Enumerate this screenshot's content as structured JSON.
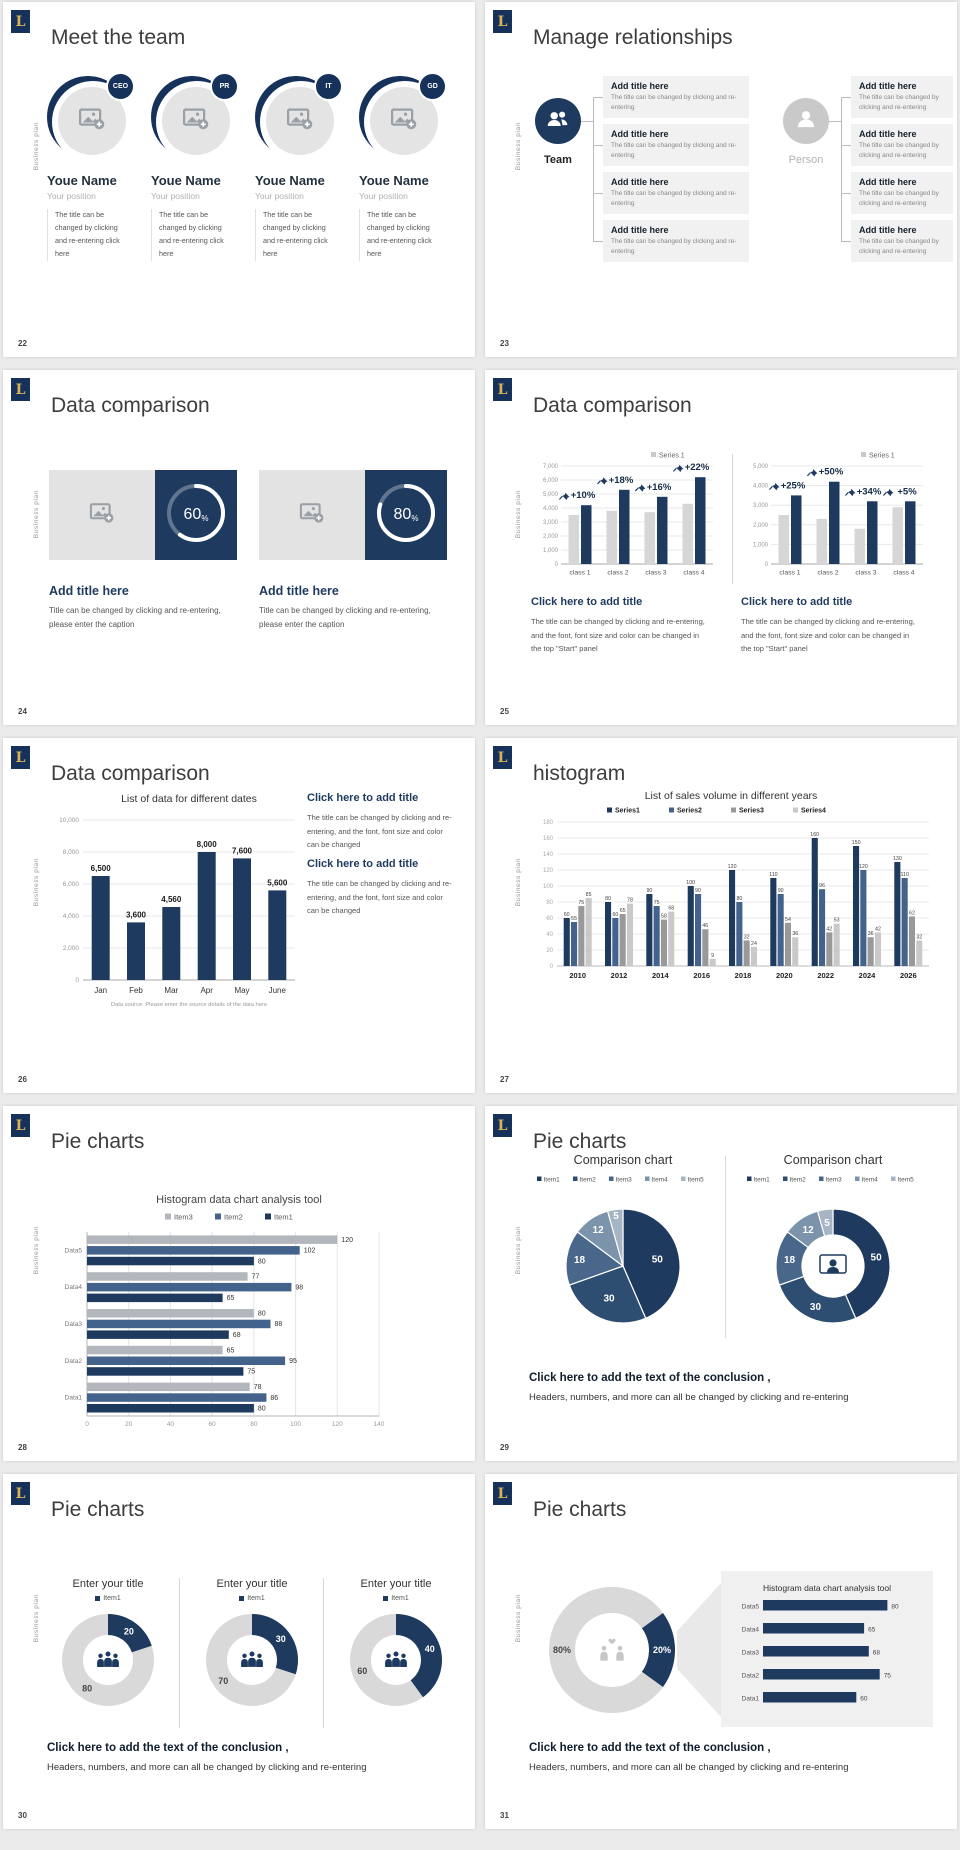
{
  "page": {
    "background": "#ebebeb"
  },
  "common": {
    "logo_letter": "L",
    "side_label": "Business plan"
  },
  "colors": {
    "navy": "#1e3a5f",
    "steel": "#44638c",
    "bar_gray": "#d6d6d6",
    "series_gray": "#999999",
    "series_light": "#c9c9c9",
    "hbar_gray": "#b3b7bd",
    "donut_gray": "#d9d9d9",
    "pie_palette": [
      "#1e3a5f",
      "#2d4d71",
      "#48678a",
      "#7b93ab",
      "#a6b4c3"
    ]
  },
  "conclusion": {
    "title": "Click here to add the text of the conclusion ,",
    "text": "Headers, numbers, and more can all be changed by clicking and re-entering"
  },
  "slides": {
    "meet_team": {
      "title": "Meet the team",
      "page": "22",
      "member_name": "Youe Name",
      "member_position": "Your position",
      "member_desc": "The title can be changed by clicking and re-entering click here",
      "members": [
        {
          "badge": "CEO"
        },
        {
          "badge": "PR"
        },
        {
          "badge": "IT"
        },
        {
          "badge": "GD"
        }
      ]
    },
    "relationships": {
      "title": "Manage relationships",
      "page": "23",
      "team_label": "Team",
      "person_label": "Person",
      "item_title": "Add title here",
      "item_desc": "The title can be changed by clicking and re-entering"
    },
    "data_cmp_a": {
      "title": "Data comparison",
      "page": "24",
      "block_title": "Add title here",
      "block_caption": "Title can be changed by clicking and re-entering, please enter the caption",
      "blocks": [
        {
          "percent": "60"
        },
        {
          "percent": "80"
        }
      ]
    },
    "data_cmp_b": {
      "title": "Data comparison",
      "page": "25",
      "caption_title": "Click here to add title",
      "caption_text": "The title can be changed by clicking and re-entering, and the font, font size and color can be changed in the top \"Start\" panel"
    },
    "data_cmp_c": {
      "title": "Data comparison",
      "page": "26",
      "caption_title": "Click here to add title",
      "caption_text": "The title can be changed by clicking and re-entering, and the font, font size and color can be changed"
    },
    "histogram": {
      "title": "histogram",
      "page": "27"
    },
    "pie_a": {
      "title": "Pie charts",
      "page": "28"
    },
    "pie_b": {
      "title": "Pie charts",
      "page": "29"
    },
    "pie_c": {
      "title": "Pie charts",
      "page": "30",
      "donut_title": "Enter your title",
      "legend": "Item1"
    },
    "pie_d": {
      "title": "Pie charts",
      "page": "31",
      "panel_title": "Histogram data chart analysis tool"
    }
  },
  "chart_data": [
    {
      "id": "cmp_b_left",
      "type": "bar",
      "legend": [
        "Series 1"
      ],
      "categories": [
        "class 1",
        "class 2",
        "class 3",
        "class 4"
      ],
      "series": [
        {
          "name": "base",
          "values": [
            3500,
            3800,
            3700,
            4300
          ]
        },
        {
          "name": "Series 1",
          "values": [
            4200,
            5300,
            4800,
            6200
          ]
        }
      ],
      "group_labels": [
        "+10%",
        "+18%",
        "+16%",
        "+22%"
      ],
      "ylim": [
        0,
        7000
      ],
      "ytick_step": 1000
    },
    {
      "id": "cmp_b_right",
      "type": "bar",
      "legend": [
        "Series 1"
      ],
      "categories": [
        "class 1",
        "class 2",
        "class 3",
        "class 4"
      ],
      "series": [
        {
          "name": "base",
          "values": [
            2500,
            2300,
            1800,
            2900
          ]
        },
        {
          "name": "Series 1",
          "values": [
            3500,
            4200,
            3200,
            3200
          ]
        }
      ],
      "group_labels": [
        "+25%",
        "+50%",
        "+34%",
        "+5%"
      ],
      "ylim": [
        0,
        5000
      ],
      "ytick_step": 1000
    },
    {
      "id": "cmp_c",
      "type": "bar",
      "title": "List of data for different dates",
      "categories": [
        "Jan",
        "Feb",
        "Mar",
        "Apr",
        "May",
        "June"
      ],
      "values": [
        6500,
        3600,
        4560,
        8000,
        7600,
        5600
      ],
      "ylim": [
        0,
        10000
      ],
      "ytick_step": 2000,
      "footnote": "Data source: Please enter the source details of the data here"
    },
    {
      "id": "histogram",
      "type": "bar",
      "title": "List of sales volume in different years",
      "categories": [
        "2010",
        "2012",
        "2014",
        "2016",
        "2018",
        "2020",
        "2022",
        "2024",
        "2026"
      ],
      "series": [
        {
          "name": "Series1",
          "values": [
            60,
            80,
            90,
            100,
            120,
            110,
            160,
            150,
            130
          ]
        },
        {
          "name": "Series2",
          "values": [
            55,
            60,
            75,
            90,
            80,
            90,
            96,
            120,
            110
          ]
        },
        {
          "name": "Series3",
          "values": [
            75,
            65,
            58,
            46,
            32,
            54,
            42,
            36,
            62
          ]
        },
        {
          "name": "Series4",
          "values": [
            85,
            78,
            68,
            9,
            24,
            36,
            53,
            42,
            32
          ]
        }
      ],
      "ylim": [
        0,
        180
      ],
      "ytick_step": 20
    },
    {
      "id": "pie_a_bars",
      "type": "bar",
      "orientation": "horizontal",
      "title": "Histogram data chart analysis tool",
      "categories": [
        "Data1",
        "Data2",
        "Data3",
        "Data4",
        "Data5"
      ],
      "series": [
        {
          "name": "Item1",
          "values": [
            80,
            75,
            68,
            65,
            80
          ]
        },
        {
          "name": "Item2",
          "values": [
            86,
            95,
            88,
            98,
            102
          ]
        },
        {
          "name": "Item3",
          "values": [
            78,
            65,
            80,
            77,
            120
          ]
        }
      ],
      "xlim": [
        0,
        140
      ],
      "xtick_step": 20
    },
    {
      "id": "pie_b_pie",
      "type": "pie",
      "title": "Comparison chart",
      "labels": [
        "Item1",
        "Item2",
        "Item3",
        "Item4",
        "Item5"
      ],
      "values": [
        50,
        30,
        18,
        12,
        5
      ]
    },
    {
      "id": "pie_b_donut",
      "type": "pie",
      "variant": "donut",
      "title": "Comparison chart",
      "labels": [
        "Item1",
        "Item2",
        "Item3",
        "Item4",
        "Item5"
      ],
      "values": [
        50,
        30,
        18,
        12,
        5
      ]
    },
    {
      "id": "pie_c_donuts",
      "type": "pie",
      "variant": "donut",
      "title": "Enter your title",
      "legend": [
        "Item1"
      ],
      "donuts": [
        {
          "value": 20,
          "remainder": 80
        },
        {
          "value": 30,
          "remainder": 70
        },
        {
          "value": 40,
          "remainder": 60
        }
      ]
    },
    {
      "id": "pie_d_donut",
      "type": "pie",
      "variant": "donut",
      "values": [
        {
          "label": "20%",
          "value": 20
        },
        {
          "label": "80%",
          "value": 80
        }
      ]
    },
    {
      "id": "pie_d_bars",
      "type": "bar",
      "orientation": "horizontal",
      "title": "Histogram data chart analysis tool",
      "categories": [
        "Data1",
        "Data2",
        "Data3",
        "Data4",
        "Data5"
      ],
      "values": [
        60,
        75,
        68,
        65,
        80
      ],
      "xlim": [
        0,
        90
      ]
    }
  ]
}
